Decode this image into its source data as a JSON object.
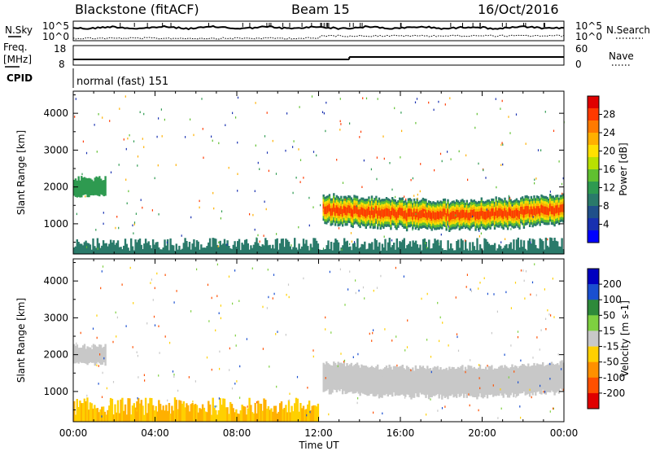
{
  "header": {
    "title": "Blackstone (fitACF)",
    "beam": "Beam 15",
    "date": "16/Oct/2016"
  },
  "noise_panel": {
    "left_label": "N.Sky",
    "right_label": "N.Search",
    "top_tick": "10^5",
    "bottom_tick": "10^0"
  },
  "freq_panel": {
    "left_label_line1": "Freq.",
    "left_label_line2": "[MHz]",
    "left_ticks": [
      "18",
      "8"
    ],
    "right_label": "Nave",
    "right_ticks": [
      "60",
      "0"
    ]
  },
  "cpid_panel": {
    "label": "CPID",
    "text": "normal (fast) 151"
  },
  "chart_data": [
    {
      "type": "heatmap",
      "name": "power",
      "ylabel": "Slant Range [km]",
      "xlabel": "",
      "ylim": [
        180,
        4600
      ],
      "x_ticks": [
        "00:00",
        "04:00",
        "08:00",
        "12:00",
        "16:00",
        "20:00",
        "00:00"
      ],
      "y_ticks": [
        1000,
        2000,
        3000,
        4000
      ],
      "colorbar": {
        "label": "Power [dB]",
        "tick_labels": [
          "28",
          "24",
          "20",
          "16",
          "12",
          "8",
          "4"
        ],
        "colors": [
          "#e00000",
          "#ff3a00",
          "#ff7a00",
          "#ffb000",
          "#ffe000",
          "#b8e000",
          "#60c030",
          "#2e9a50",
          "#2a7a6a",
          "#20508a",
          "#1830b0",
          "#0000ff"
        ]
      },
      "features": [
        {
          "start_hour": 0.0,
          "end_hour": 1.6,
          "range_km": [
            1700,
            2300
          ],
          "value": 14
        },
        {
          "start_hour": 12.2,
          "end_hour": 24.0,
          "range_km": [
            950,
            1800
          ],
          "value": 30
        },
        {
          "start_hour": 0.0,
          "end_hour": 24.0,
          "range_km": [
            180,
            450
          ],
          "value": 10
        }
      ]
    },
    {
      "type": "heatmap",
      "name": "velocity",
      "ylabel": "Slant Range [km]",
      "xlabel": "Time UT",
      "ylim": [
        180,
        4600
      ],
      "x_ticks": [
        "00:00",
        "04:00",
        "08:00",
        "12:00",
        "16:00",
        "20:00",
        "00:00"
      ],
      "y_ticks": [
        1000,
        2000,
        3000,
        4000
      ],
      "colorbar": {
        "label": "Velocity [m s-1]",
        "tick_labels": [
          "200",
          "100",
          "50",
          "15",
          "-15",
          "-50",
          "-100",
          "-200"
        ],
        "colors": [
          "#0000c0",
          "#1a4fd0",
          "#2e8a3a",
          "#7ed040",
          "#c8c8c8",
          "#ffd000",
          "#ff9000",
          "#ff5000",
          "#e00000"
        ]
      },
      "features": [
        {
          "start_hour": 0.0,
          "end_hour": 1.6,
          "range_km": [
            1700,
            2300
          ],
          "value": 0
        },
        {
          "start_hour": 12.2,
          "end_hour": 24.0,
          "range_km": [
            950,
            1800
          ],
          "value": 0
        },
        {
          "start_hour": 0.0,
          "end_hour": 12.0,
          "range_km": [
            180,
            600
          ],
          "value": -40
        }
      ]
    }
  ]
}
